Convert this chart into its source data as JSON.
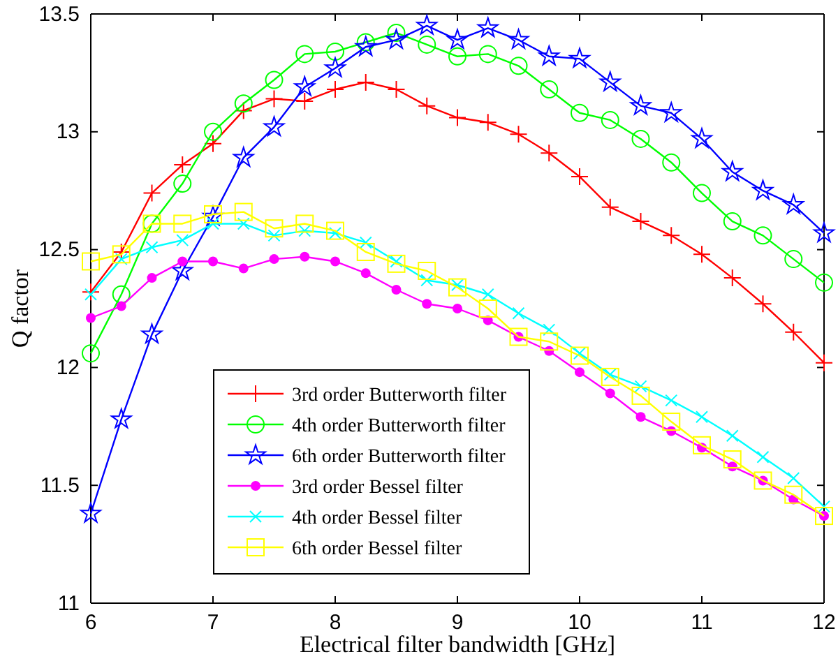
{
  "chart_data": {
    "type": "line",
    "xlabel": "Electrical filter bandwidth [GHz]",
    "ylabel": "Q factor",
    "x": [
      6,
      6.25,
      6.5,
      6.75,
      7,
      7.25,
      7.5,
      7.75,
      8,
      8.25,
      8.5,
      8.75,
      9,
      9.25,
      9.5,
      9.75,
      10,
      10.25,
      10.5,
      10.75,
      11,
      11.25,
      11.5,
      11.75,
      12
    ],
    "series": [
      {
        "name": "3rd order Butterworth filter",
        "color": "#ff0000",
        "marker": "cross",
        "values": [
          12.32,
          12.49,
          12.74,
          12.86,
          12.95,
          13.09,
          13.14,
          13.13,
          13.18,
          13.21,
          13.18,
          13.11,
          13.06,
          13.04,
          12.99,
          12.91,
          12.81,
          12.68,
          12.62,
          12.56,
          12.48,
          12.38,
          12.27,
          12.15,
          12.02
        ]
      },
      {
        "name": "4th order Butterworth filter",
        "color": "#00ff00",
        "marker": "circle",
        "values": [
          12.06,
          12.31,
          12.61,
          12.78,
          13.0,
          13.12,
          13.22,
          13.33,
          13.34,
          13.38,
          13.42,
          13.37,
          13.32,
          13.33,
          13.28,
          13.18,
          13.08,
          13.05,
          12.97,
          12.87,
          12.74,
          12.62,
          12.56,
          12.46,
          12.36
        ]
      },
      {
        "name": "6th order Butterworth filter",
        "color": "#0000ff",
        "marker": "star",
        "values": [
          11.38,
          11.78,
          12.14,
          12.41,
          12.64,
          12.89,
          13.02,
          13.19,
          13.27,
          13.36,
          13.39,
          13.45,
          13.39,
          13.44,
          13.39,
          13.32,
          13.31,
          13.21,
          13.11,
          13.08,
          12.97,
          12.83,
          12.75,
          12.69,
          12.57
        ]
      },
      {
        "name": "3rd order Bessel filter",
        "color": "#ff00ff",
        "marker": "point",
        "values": [
          12.21,
          12.26,
          12.38,
          12.45,
          12.45,
          12.42,
          12.46,
          12.47,
          12.45,
          12.4,
          12.33,
          12.27,
          12.25,
          12.2,
          12.13,
          12.07,
          11.98,
          11.89,
          11.79,
          11.73,
          11.66,
          11.58,
          11.52,
          11.44,
          11.37
        ]
      },
      {
        "name": "4th order Bessel filter",
        "color": "#00ffff",
        "marker": "x",
        "values": [
          12.31,
          12.46,
          12.51,
          12.54,
          12.61,
          12.61,
          12.56,
          12.58,
          12.57,
          12.53,
          12.45,
          12.37,
          12.35,
          12.31,
          12.23,
          12.16,
          12.06,
          11.97,
          11.92,
          11.86,
          11.79,
          11.71,
          11.62,
          11.53,
          11.41
        ]
      },
      {
        "name": "6th order Bessel filter",
        "color": "#ffff00",
        "marker": "square",
        "values": [
          12.45,
          12.48,
          12.61,
          12.61,
          12.65,
          12.66,
          12.59,
          12.61,
          12.58,
          12.49,
          12.44,
          12.41,
          12.34,
          12.25,
          12.13,
          12.11,
          12.05,
          11.96,
          11.88,
          11.77,
          11.67,
          11.61,
          11.52,
          11.46,
          11.37
        ]
      }
    ],
    "xlim": [
      6,
      12
    ],
    "xticks": [
      6,
      7,
      8,
      9,
      10,
      11,
      12
    ],
    "ylim": [
      11,
      13.5
    ],
    "yticks": [
      11,
      11.5,
      12,
      12.5,
      13,
      13.5
    ],
    "grid": false,
    "legend": "bottom left"
  }
}
